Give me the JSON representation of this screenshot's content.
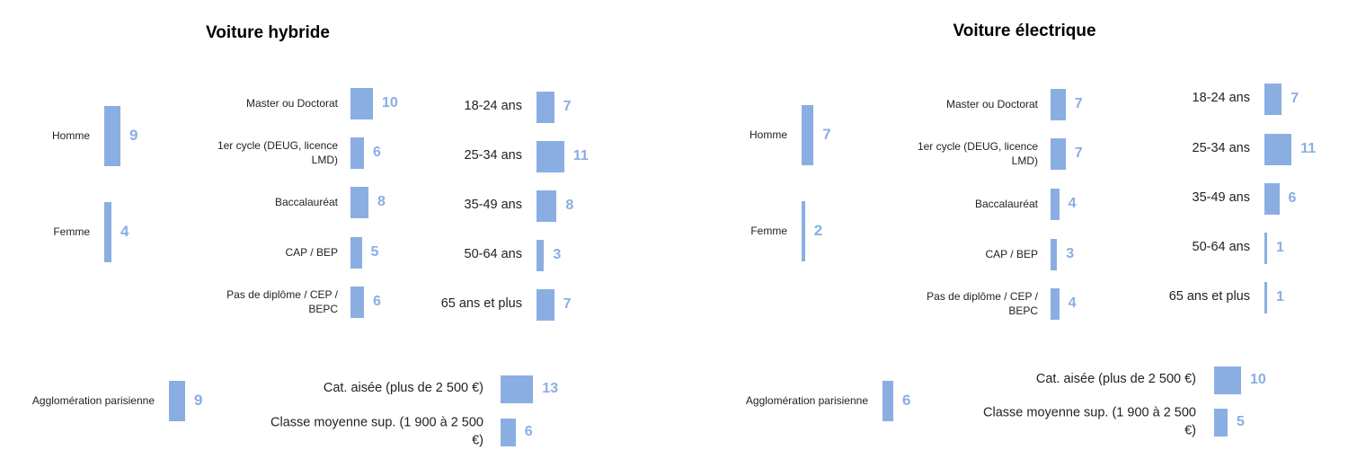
{
  "colors": {
    "bar": "#8aaee2",
    "value_label": "#8aaee2"
  },
  "chart_data": [
    {
      "type": "bar",
      "title": "Voiture hybride",
      "orientation": "horizontal",
      "groups": [
        {
          "categories": [
            "Homme",
            "Femme"
          ],
          "values": [
            9,
            4
          ]
        },
        {
          "categories": [
            "Master ou Doctorat",
            "1er cycle (DEUG, licence LMD)",
            "Baccalauréat",
            "CAP / BEP",
            "Pas de diplôme / CEP / BEPC"
          ],
          "values": [
            10,
            6,
            8,
            5,
            6
          ]
        },
        {
          "categories": [
            "18-24 ans",
            "25-34 ans",
            "35-49 ans",
            "50-64 ans",
            "65 ans et plus"
          ],
          "values": [
            7,
            11,
            8,
            3,
            7
          ]
        },
        {
          "categories": [
            "Agglomération parisienne"
          ],
          "values": [
            9
          ]
        },
        {
          "categories": [
            "Cat. aisée (plus de 2 500 €)",
            "Classe moyenne sup. (1 900 à 2 500 €)"
          ],
          "values": [
            13,
            6
          ]
        }
      ]
    },
    {
      "type": "bar",
      "title": "Voiture électrique",
      "orientation": "horizontal",
      "groups": [
        {
          "categories": [
            "Homme",
            "Femme"
          ],
          "values": [
            7,
            2
          ]
        },
        {
          "categories": [
            "Master ou Doctorat",
            "1er cycle (DEUG, licence LMD)",
            "Baccalauréat",
            "CAP / BEP",
            "Pas de diplôme / CEP / BEPC"
          ],
          "values": [
            7,
            7,
            4,
            3,
            4
          ]
        },
        {
          "categories": [
            "18-24 ans",
            "25-34 ans",
            "35-49 ans",
            "50-64 ans",
            "65 ans et plus"
          ],
          "values": [
            7,
            11,
            6,
            1,
            1
          ]
        },
        {
          "categories": [
            "Agglomération parisienne"
          ],
          "values": [
            6
          ]
        },
        {
          "categories": [
            "Cat. aisée (plus de 2 500 €)",
            "Classe moyenne sup. (1 900 à 2 500 €)"
          ],
          "values": [
            10,
            5
          ]
        }
      ]
    }
  ]
}
